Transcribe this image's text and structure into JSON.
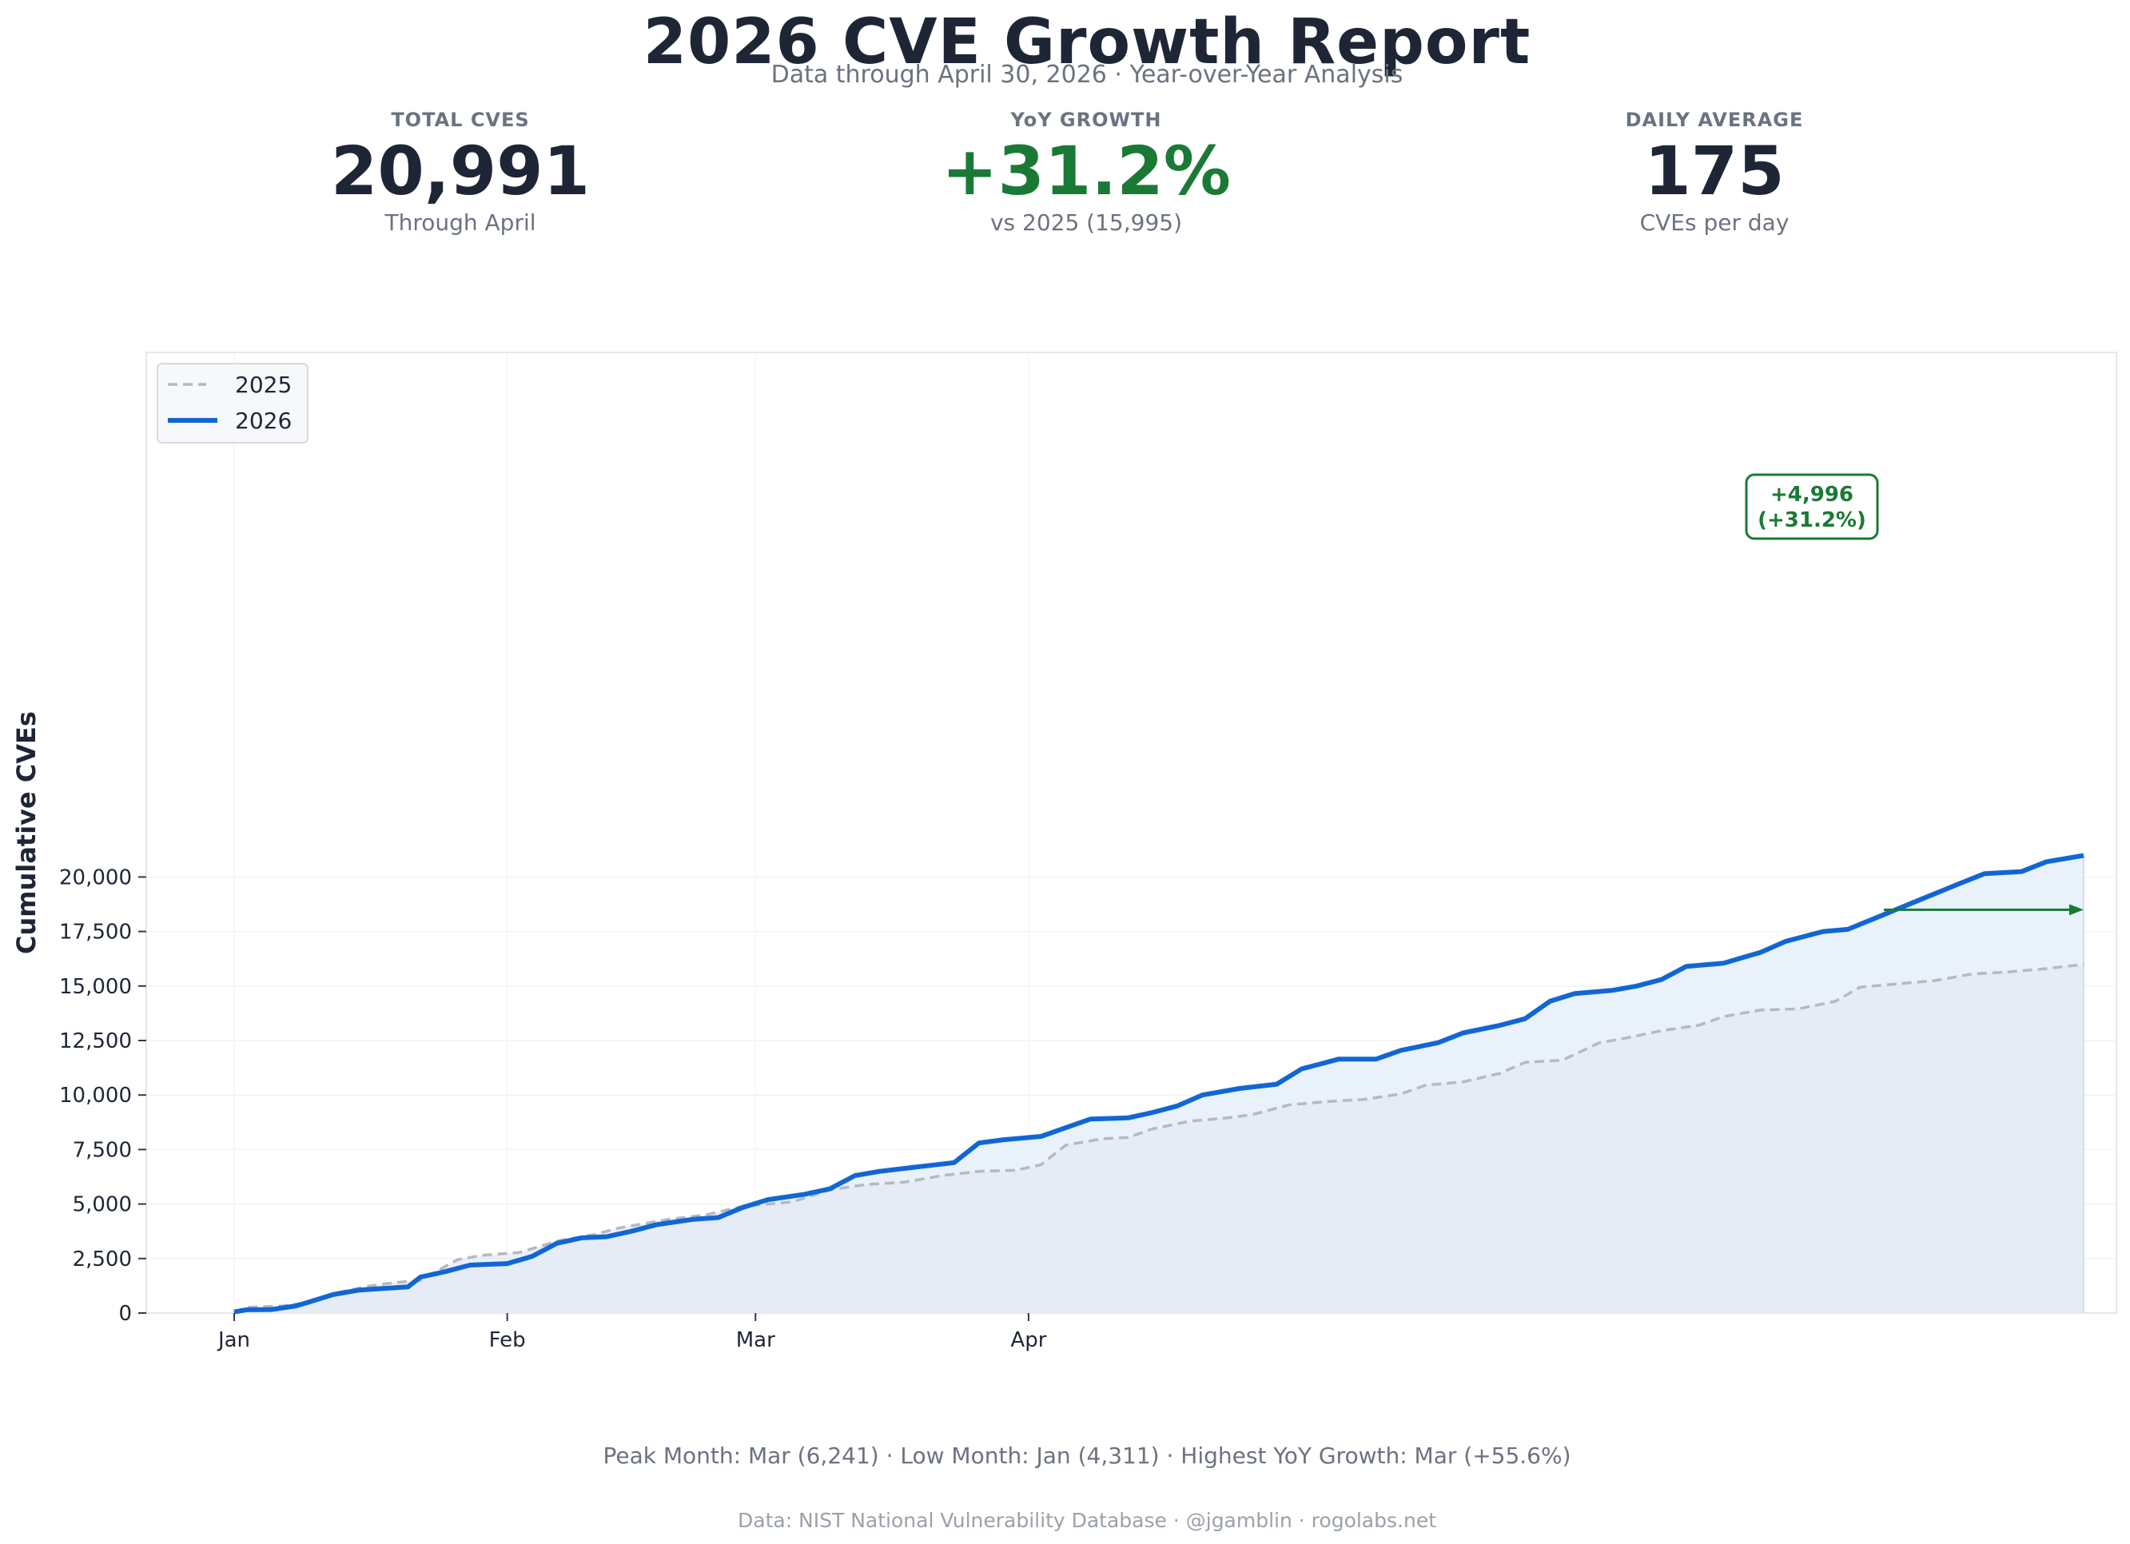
{
  "header": {
    "title": "2026 CVE Growth Report",
    "subtitle": "Data through April 30, 2026  ·  Year-over-Year Analysis"
  },
  "kpis": [
    {
      "label": "TOTAL CVES",
      "value": "20,991",
      "sub": "Through April"
    },
    {
      "label": "YoY GROWTH",
      "value": "+31.2%",
      "sub": "vs 2025 (15,995)"
    },
    {
      "label": "DAILY AVERAGE",
      "value": "175",
      "sub": "CVEs per day"
    }
  ],
  "colors": {
    "series_2026": "#1166d6",
    "series_2025": "#b4b9c2",
    "fill": "#dfe9f6",
    "accent_green": "#1a7a35",
    "text_dark": "#1e2636",
    "text_muted": "#6b7280"
  },
  "chart_data": {
    "type": "line",
    "ylabel": "Cumulative CVEs",
    "xlabel": "",
    "x_ticks": [
      "Jan",
      "Feb",
      "Mar",
      "Apr"
    ],
    "ylim": [
      0,
      22000
    ],
    "y_ticks": [
      "0",
      "2,500",
      "5,000",
      "7,500",
      "10,000",
      "12,500",
      "15,000",
      "17,500",
      "20,000"
    ],
    "legend_position": "top-left",
    "grid": true,
    "series": [
      {
        "name": "2025",
        "style": "dashed",
        "points": [
          [
            "2026-01-01",
            0
          ],
          [
            "2026-01-02",
            260
          ],
          [
            "2026-01-05",
            330
          ],
          [
            "2026-01-07",
            500
          ],
          [
            "2026-01-09",
            900
          ],
          [
            "2026-01-12",
            1250
          ],
          [
            "2026-01-14",
            1400
          ],
          [
            "2026-01-16",
            1500
          ],
          [
            "2026-01-19",
            2450
          ],
          [
            "2026-01-21",
            2650
          ],
          [
            "2026-01-24",
            2780
          ],
          [
            "2026-01-27",
            3300
          ],
          [
            "2026-01-30",
            3600
          ],
          [
            "2026-02-01",
            3900
          ],
          [
            "2026-02-03",
            4100
          ],
          [
            "2026-02-05",
            4300
          ],
          [
            "2026-02-08",
            4500
          ],
          [
            "2026-02-11",
            4900
          ],
          [
            "2026-02-13",
            5000
          ],
          [
            "2026-02-15",
            5100
          ],
          [
            "2026-02-18",
            5650
          ],
          [
            "2026-02-21",
            5900
          ],
          [
            "2026-02-24",
            6000
          ],
          [
            "2026-02-27",
            6300
          ],
          [
            "2026-03-02",
            6500
          ],
          [
            "2026-03-05",
            6550
          ],
          [
            "2026-03-07",
            6800
          ],
          [
            "2026-03-09",
            7700
          ],
          [
            "2026-03-12",
            8000
          ],
          [
            "2026-03-14",
            8050
          ],
          [
            "2026-03-16",
            8450
          ],
          [
            "2026-03-19",
            8800
          ],
          [
            "2026-03-22",
            8950
          ],
          [
            "2026-03-24",
            9100
          ],
          [
            "2026-03-27",
            9550
          ],
          [
            "2026-03-30",
            9700
          ],
          [
            "2026-04-02",
            9800
          ],
          [
            "2026-04-05",
            10050
          ],
          [
            "2026-04-07",
            10450
          ],
          [
            "2026-04-10",
            10600
          ],
          [
            "2026-04-13",
            11000
          ],
          [
            "2026-04-15",
            11500
          ],
          [
            "2026-04-18",
            11600
          ],
          [
            "2026-04-21",
            12400
          ],
          [
            "2026-04-23",
            12600
          ],
          [
            "2026-04-26",
            12950
          ],
          [
            "2026-04-29",
            13200
          ],
          [
            "2026-05-01",
            13600
          ],
          [
            "2026-05-04",
            13900
          ],
          [
            "2026-05-07",
            13950
          ],
          [
            "2026-05-10",
            14300
          ],
          [
            "2026-05-12",
            14950
          ],
          [
            "2026-05-15",
            15100
          ],
          [
            "2026-05-18",
            15250
          ],
          [
            "2026-05-21",
            15550
          ],
          [
            "2026-05-24",
            15650
          ],
          [
            "2026-05-27",
            15800
          ],
          [
            "2026-05-30",
            15995
          ]
        ]
      },
      {
        "name": "2026",
        "style": "solid",
        "points": [
          [
            "2026-01-01",
            50
          ],
          [
            "2026-01-02",
            150
          ],
          [
            "2026-01-04",
            160
          ],
          [
            "2026-01-06",
            330
          ],
          [
            "2026-01-07",
            500
          ],
          [
            "2026-01-09",
            850
          ],
          [
            "2026-01-11",
            1050
          ],
          [
            "2026-01-13",
            1130
          ],
          [
            "2026-01-15",
            1200
          ],
          [
            "2026-01-16",
            1650
          ],
          [
            "2026-01-18",
            1900
          ],
          [
            "2026-01-20",
            2200
          ],
          [
            "2026-01-23",
            2270
          ],
          [
            "2026-01-25",
            2600
          ],
          [
            "2026-01-27",
            3200
          ],
          [
            "2026-01-29",
            3450
          ],
          [
            "2026-01-31",
            3500
          ],
          [
            "2026-02-02",
            3750
          ],
          [
            "2026-02-04",
            4050
          ],
          [
            "2026-02-07",
            4300
          ],
          [
            "2026-02-09",
            4380
          ],
          [
            "2026-02-11",
            4850
          ],
          [
            "2026-02-13",
            5200
          ],
          [
            "2026-02-16",
            5450
          ],
          [
            "2026-02-18",
            5700
          ],
          [
            "2026-02-20",
            6300
          ],
          [
            "2026-02-22",
            6500
          ],
          [
            "2026-02-25",
            6700
          ],
          [
            "2026-02-28",
            6900
          ],
          [
            "2026-03-02",
            7800
          ],
          [
            "2026-03-04",
            7950
          ],
          [
            "2026-03-07",
            8100
          ],
          [
            "2026-03-09",
            8500
          ],
          [
            "2026-03-11",
            8900
          ],
          [
            "2026-03-14",
            8950
          ],
          [
            "2026-03-16",
            9200
          ],
          [
            "2026-03-18",
            9500
          ],
          [
            "2026-03-20",
            10000
          ],
          [
            "2026-03-23",
            10300
          ],
          [
            "2026-03-26",
            10500
          ],
          [
            "2026-03-28",
            11200
          ],
          [
            "2026-03-31",
            11650
          ],
          [
            "2026-04-03",
            11650
          ],
          [
            "2026-04-05",
            12050
          ],
          [
            "2026-04-08",
            12400
          ],
          [
            "2026-04-10",
            12850
          ],
          [
            "2026-04-13",
            13200
          ],
          [
            "2026-04-15",
            13500
          ],
          [
            "2026-04-17",
            14300
          ],
          [
            "2026-04-19",
            14650
          ],
          [
            "2026-04-22",
            14800
          ],
          [
            "2026-04-24",
            15000
          ],
          [
            "2026-04-26",
            15300
          ],
          [
            "2026-04-28",
            15900
          ],
          [
            "2026-05-01",
            16050
          ],
          [
            "2026-05-04",
            16550
          ],
          [
            "2026-05-06",
            17050
          ],
          [
            "2026-05-09",
            17500
          ],
          [
            "2026-05-11",
            17600
          ],
          [
            "2026-05-14",
            18300
          ],
          [
            "2026-05-17",
            19000
          ],
          [
            "2026-05-20",
            19700
          ],
          [
            "2026-05-22",
            20150
          ],
          [
            "2026-05-25",
            20250
          ],
          [
            "2026-05-27",
            20700
          ],
          [
            "2026-05-30",
            20991
          ]
        ]
      }
    ],
    "annotation": {
      "text_line1": "+4,996",
      "text_line2": "(+31.2%)",
      "arrow_target": [
        "2026-05-30",
        18500
      ]
    }
  },
  "footer": {
    "stats": "Peak Month: Mar (6,241)  ·  Low Month: Jan (4,311)  ·  Highest YoY Growth: Mar (+55.6%)",
    "source": "Data: NIST National Vulnerability Database  ·  @jgamblin · rogolabs.net"
  }
}
